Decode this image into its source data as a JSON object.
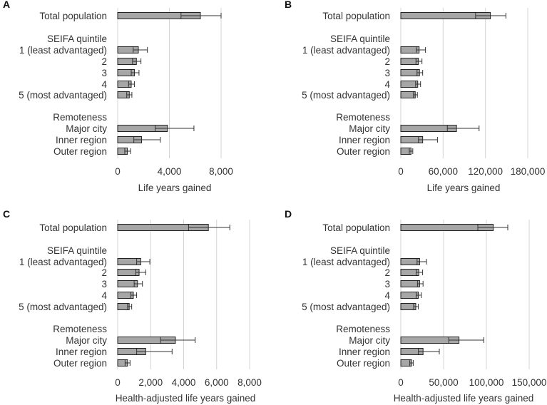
{
  "chart_data": [
    {
      "type": "bar",
      "panel": "A",
      "orientation": "horizontal",
      "categories": [
        "Total population",
        "SEIFA quintile",
        "1 (least advantaged)",
        "2",
        "3",
        "4",
        "5 (most advantaged)",
        "Remoteness",
        "Major city",
        "Inner region",
        "Outer region"
      ],
      "values": [
        6400,
        null,
        1600,
        1450,
        1300,
        1050,
        900,
        null,
        3850,
        1850,
        750
      ],
      "error_low": [
        4900,
        null,
        1200,
        1150,
        1050,
        850,
        700,
        null,
        2900,
        1250,
        550
      ],
      "error_high": [
        8000,
        null,
        2300,
        1800,
        1650,
        1300,
        1100,
        null,
        5900,
        3300,
        1000
      ],
      "xlabel": "Life years gained",
      "xlim": [
        0,
        8000
      ],
      "xticks": [
        0,
        4000,
        8000
      ],
      "xtick_labels": [
        "0",
        "4,000",
        "8,000"
      ]
    },
    {
      "type": "bar",
      "panel": "B",
      "orientation": "horizontal",
      "categories": [
        "Total population",
        "SEIFA quintile",
        "1 (least advantaged)",
        "2",
        "3",
        "4",
        "5 (most advantaged)",
        "Remoteness",
        "Major city",
        "Inner region",
        "Outer region"
      ],
      "values": [
        127000,
        null,
        26000,
        25000,
        26500,
        24000,
        20500,
        null,
        79000,
        31000,
        14500
      ],
      "error_low": [
        106000,
        null,
        22000,
        21500,
        23000,
        21000,
        18000,
        null,
        66000,
        25000,
        12000
      ],
      "error_high": [
        149000,
        null,
        35000,
        30000,
        31000,
        28000,
        23500,
        null,
        111000,
        52000,
        17000
      ],
      "xlabel": "Life years gained",
      "xlim": [
        0,
        180000
      ],
      "xticks": [
        0,
        60000,
        120000,
        180000
      ],
      "xtick_labels": [
        "0",
        "60,000",
        "120,000",
        "180,000"
      ]
    },
    {
      "type": "bar",
      "panel": "C",
      "orientation": "horizontal",
      "categories": [
        "Total population",
        "SEIFA quintile",
        "1 (least advantaged)",
        "2",
        "3",
        "4",
        "5 (most advantaged)",
        "Remoteness",
        "Major city",
        "Inner region",
        "Outer region"
      ],
      "values": [
        5500,
        null,
        1400,
        1300,
        1200,
        950,
        700,
        null,
        3500,
        1700,
        600
      ],
      "error_low": [
        4300,
        null,
        1150,
        1100,
        1000,
        800,
        600,
        null,
        2600,
        1150,
        450
      ],
      "error_high": [
        6800,
        null,
        1950,
        1700,
        1500,
        1150,
        850,
        null,
        4700,
        3300,
        750
      ],
      "xlabel": "Health-adjusted life years gained",
      "xlim": [
        0,
        8000
      ],
      "xticks": [
        0,
        2000,
        4000,
        6000,
        8000
      ],
      "xtick_labels": [
        "0",
        "2,000",
        "4,000",
        "6,000",
        "8,000"
      ]
    },
    {
      "type": "bar",
      "panel": "D",
      "orientation": "horizontal",
      "categories": [
        "Total population",
        "SEIFA quintile",
        "1 (least advantaged)",
        "2",
        "3",
        "4",
        "5 (most advantaged)",
        "Remoteness",
        "Major city",
        "Inner region",
        "Outer region"
      ],
      "values": [
        108000,
        null,
        22000,
        21000,
        22000,
        20500,
        17500,
        null,
        68000,
        26000,
        12500
      ],
      "error_low": [
        90000,
        null,
        19000,
        18000,
        19500,
        18000,
        15000,
        null,
        56000,
        20500,
        10500
      ],
      "error_high": [
        125000,
        null,
        30000,
        25500,
        26000,
        24000,
        20500,
        null,
        97000,
        45000,
        14500
      ],
      "xlabel": "Health-adjusted life years gained",
      "xlim": [
        0,
        150000
      ],
      "xticks": [
        0,
        50000,
        100000,
        150000
      ],
      "xtick_labels": [
        "0",
        "50,000",
        "100,000",
        "150,000"
      ]
    }
  ]
}
